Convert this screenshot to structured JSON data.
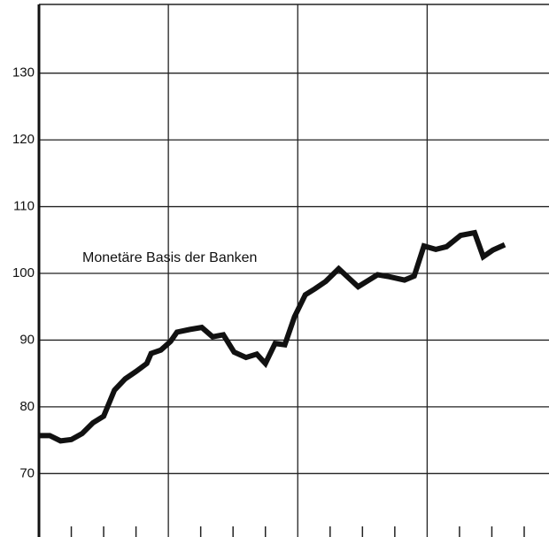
{
  "chart_data": {
    "type": "line",
    "annotation": "Monetäre Basis der Banken",
    "x": [
      0,
      1,
      2,
      3,
      4,
      5,
      6,
      7,
      8,
      9,
      10,
      10.4,
      11.3,
      12.2,
      12.8,
      14,
      15.1,
      16.1,
      17.1,
      18.1,
      19.2,
      20.2,
      21,
      21.9,
      22.8,
      23.7,
      24.7,
      25.6,
      26.6,
      27.8,
      28.8,
      29.6,
      30.6,
      31.4,
      32.5,
      33.9,
      34.8,
      35.7,
      36.8,
      37.8,
      39.1,
      40.4,
      41.2,
      42.1,
      43.2
    ],
    "values": [
      75.7,
      75.7,
      74.9,
      75.1,
      76.0,
      77.6,
      78.6,
      82.5,
      84.2,
      85.3,
      86.5,
      88.0,
      88.5,
      89.8,
      91.2,
      91.6,
      91.9,
      90.5,
      90.8,
      88.2,
      87.4,
      87.9,
      86.5,
      89.5,
      89.3,
      93.5,
      96.8,
      97.7,
      98.8,
      100.7,
      99.2,
      98.0,
      99.0,
      99.8,
      99.5,
      99.0,
      99.6,
      104.1,
      103.6,
      104.0,
      105.7,
      106.1,
      102.5,
      103.5,
      104.3
    ],
    "color": "#111111",
    "xlim": [
      0,
      47.3
    ],
    "xticks": [
      3,
      6,
      9,
      15,
      18,
      21,
      27,
      30,
      33,
      39,
      42,
      45
    ],
    "xgrid": [
      12,
      24,
      36
    ],
    "ylim": [
      60.5,
      140.3
    ],
    "yticks": [
      70,
      80,
      90,
      100,
      110,
      120,
      130
    ],
    "grid": true
  }
}
